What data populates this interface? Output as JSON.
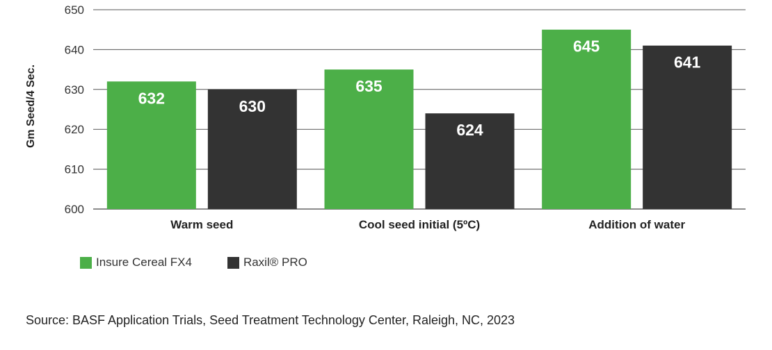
{
  "chart_data": {
    "type": "bar",
    "ylabel": "Gm Seed/4 Sec.",
    "xlabel": "",
    "categories": [
      "Warm seed",
      "Cool seed initial (5ºC)",
      "Addition of water"
    ],
    "series": [
      {
        "name": "Insure Cereal FX4",
        "values": [
          632,
          635,
          645
        ],
        "color": "#4caf48"
      },
      {
        "name": "Raxil® PRO",
        "values": [
          630,
          624,
          641
        ],
        "color": "#333333"
      }
    ],
    "ylim": [
      600,
      650
    ],
    "yticks": [
      600,
      610,
      620,
      630,
      640,
      650
    ],
    "grid": true,
    "legend_position": "bottom-left",
    "data_labels": true
  },
  "source": "Source: BASF Application Trials, Seed Treatment Technology Center, Raleigh, NC, 2023"
}
